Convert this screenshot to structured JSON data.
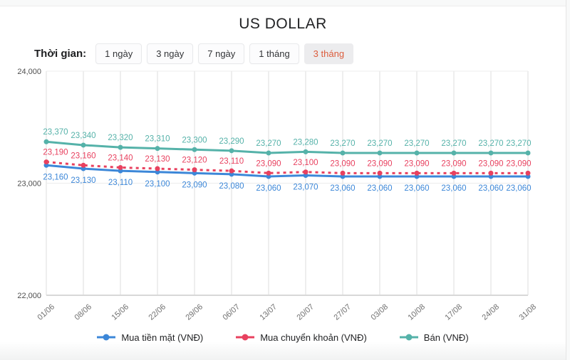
{
  "title": "US DOLLAR",
  "controls": {
    "label": "Thời gian:",
    "selected_color": "#dc5c3c",
    "buttons": [
      {
        "label": "1 ngày",
        "selected": false
      },
      {
        "label": "3 ngày",
        "selected": false
      },
      {
        "label": "7 ngày",
        "selected": false
      },
      {
        "label": "1 tháng",
        "selected": false
      },
      {
        "label": "3 tháng",
        "selected": true
      }
    ]
  },
  "chart_data": {
    "type": "line",
    "title": "US DOLLAR",
    "x": [
      "01/06",
      "08/06",
      "15/06",
      "22/06",
      "29/06",
      "06/07",
      "13/07",
      "20/07",
      "27/07",
      "03/08",
      "10/08",
      "17/08",
      "24/08",
      "31/08"
    ],
    "series": [
      {
        "name": "Mua tiền mặt (VNĐ)",
        "color": "#3c87d8",
        "dash": "solid",
        "label_position": "below",
        "values": [
          23160,
          23130,
          23110,
          23100,
          23090,
          23080,
          23060,
          23070,
          23060,
          23060,
          23060,
          23060,
          23060,
          23060
        ]
      },
      {
        "name": "Mua chuyển khoản (VNĐ)",
        "color": "#e8415f",
        "dash": "dashed",
        "label_position": "above",
        "values": [
          23190,
          23160,
          23140,
          23130,
          23120,
          23110,
          23090,
          23100,
          23090,
          23090,
          23090,
          23090,
          23090,
          23090
        ]
      },
      {
        "name": "Bán (VNĐ)",
        "color": "#55b2a9",
        "dash": "solid",
        "label_position": "above",
        "values": [
          23370,
          23340,
          23320,
          23310,
          23300,
          23290,
          23270,
          23280,
          23270,
          23270,
          23270,
          23270,
          23270,
          23270
        ]
      }
    ],
    "ylim": [
      22000,
      24000
    ],
    "yticks": [
      22000,
      23000,
      24000
    ],
    "ytick_labels": [
      "22,000",
      "23,000",
      "24,000"
    ],
    "grid": true,
    "legend_position": "bottom",
    "colors": {
      "gridline": "#e9e9e9",
      "axis_line": "#d8d8d8",
      "y_tick_text": "#4e4e4e",
      "x_tick_text": "#6f6f6f"
    }
  }
}
